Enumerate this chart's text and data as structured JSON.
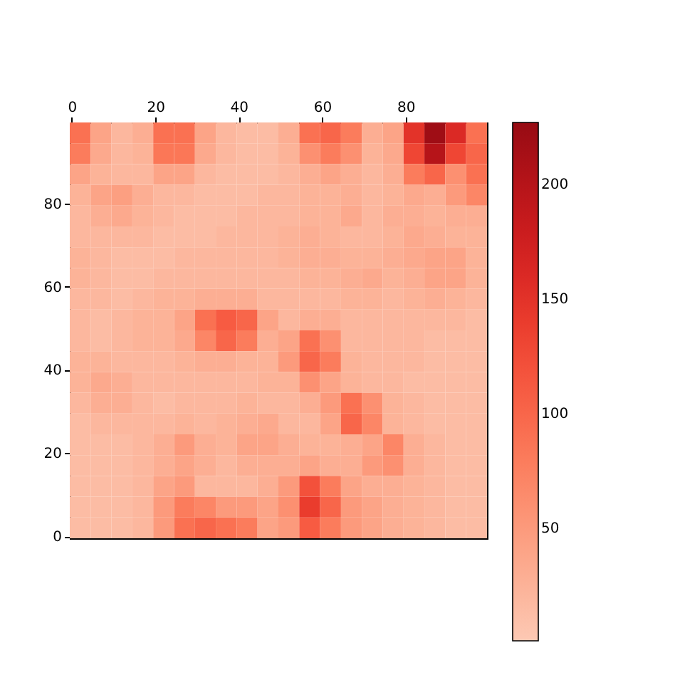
{
  "chart_data": {
    "type": "heatmap",
    "x": [
      2,
      7,
      12,
      17,
      22,
      27,
      32,
      37,
      42,
      47,
      52,
      57,
      62,
      67,
      72,
      77,
      82,
      87,
      92,
      97
    ],
    "y": [
      97,
      92,
      87,
      82,
      77,
      72,
      67,
      62,
      57,
      52,
      47,
      42,
      37,
      32,
      27,
      22,
      17,
      12,
      7,
      2
    ],
    "xlim": [
      -0.5,
      99.5
    ],
    "ylim": [
      -0.5,
      99.5
    ],
    "xticks": [
      0,
      20,
      40,
      60,
      80
    ],
    "yticks": [
      0,
      20,
      40,
      60,
      80
    ],
    "clim": [
      1,
      227
    ],
    "cticks": [
      50,
      100,
      150,
      200
    ],
    "cells": [
      [
        90,
        40,
        20,
        30,
        90,
        90,
        40,
        20,
        15,
        15,
        30,
        90,
        100,
        80,
        30,
        40,
        150,
        220,
        160,
        90
      ],
      [
        80,
        35,
        20,
        25,
        85,
        85,
        35,
        20,
        15,
        15,
        25,
        60,
        80,
        60,
        25,
        35,
        130,
        200,
        130,
        100
      ],
      [
        40,
        25,
        20,
        20,
        40,
        40,
        20,
        15,
        15,
        15,
        20,
        30,
        40,
        30,
        20,
        30,
        80,
        100,
        60,
        90
      ],
      [
        25,
        40,
        45,
        30,
        20,
        20,
        15,
        15,
        15,
        20,
        20,
        25,
        25,
        30,
        20,
        25,
        35,
        30,
        50,
        70
      ],
      [
        20,
        30,
        35,
        25,
        20,
        15,
        15,
        15,
        20,
        20,
        20,
        25,
        25,
        35,
        20,
        30,
        30,
        25,
        30,
        30
      ],
      [
        20,
        20,
        20,
        20,
        15,
        15,
        15,
        20,
        20,
        20,
        25,
        30,
        25,
        20,
        20,
        25,
        35,
        30,
        25,
        25
      ],
      [
        25,
        20,
        15,
        15,
        15,
        20,
        20,
        20,
        20,
        20,
        25,
        30,
        30,
        25,
        25,
        30,
        35,
        40,
        40,
        25
      ],
      [
        25,
        20,
        15,
        15,
        20,
        20,
        20,
        20,
        20,
        20,
        20,
        25,
        25,
        30,
        35,
        25,
        30,
        40,
        40,
        25
      ],
      [
        20,
        20,
        15,
        20,
        25,
        25,
        30,
        30,
        30,
        20,
        20,
        20,
        20,
        25,
        25,
        20,
        25,
        30,
        25,
        20
      ],
      [
        20,
        15,
        20,
        25,
        25,
        40,
        90,
        110,
        100,
        40,
        20,
        30,
        30,
        20,
        20,
        20,
        20,
        20,
        20,
        15
      ],
      [
        20,
        15,
        20,
        25,
        25,
        35,
        70,
        100,
        80,
        30,
        40,
        90,
        60,
        20,
        20,
        20,
        20,
        15,
        15,
        15
      ],
      [
        25,
        25,
        20,
        20,
        20,
        25,
        30,
        30,
        25,
        25,
        50,
        100,
        80,
        25,
        20,
        20,
        20,
        15,
        15,
        15
      ],
      [
        25,
        35,
        30,
        20,
        20,
        20,
        20,
        20,
        20,
        25,
        25,
        60,
        40,
        25,
        20,
        20,
        15,
        15,
        15,
        15
      ],
      [
        20,
        30,
        30,
        20,
        15,
        20,
        20,
        20,
        25,
        20,
        20,
        30,
        50,
        90,
        60,
        25,
        20,
        15,
        15,
        15
      ],
      [
        15,
        20,
        20,
        20,
        20,
        25,
        20,
        25,
        30,
        35,
        20,
        20,
        40,
        100,
        70,
        25,
        20,
        15,
        15,
        15
      ],
      [
        15,
        15,
        15,
        20,
        30,
        50,
        30,
        25,
        40,
        40,
        30,
        25,
        25,
        30,
        40,
        70,
        30,
        20,
        15,
        15
      ],
      [
        15,
        15,
        15,
        20,
        30,
        40,
        30,
        20,
        30,
        30,
        30,
        40,
        30,
        30,
        50,
        60,
        30,
        20,
        15,
        15
      ],
      [
        15,
        15,
        15,
        20,
        40,
        50,
        20,
        20,
        20,
        30,
        50,
        120,
        80,
        40,
        30,
        30,
        25,
        20,
        15,
        15
      ],
      [
        15,
        15,
        15,
        20,
        50,
        80,
        70,
        50,
        50,
        40,
        60,
        140,
        100,
        50,
        40,
        30,
        25,
        20,
        15,
        15
      ],
      [
        15,
        15,
        15,
        20,
        50,
        90,
        100,
        90,
        80,
        40,
        50,
        110,
        80,
        50,
        40,
        30,
        25,
        20,
        15,
        15
      ]
    ]
  }
}
